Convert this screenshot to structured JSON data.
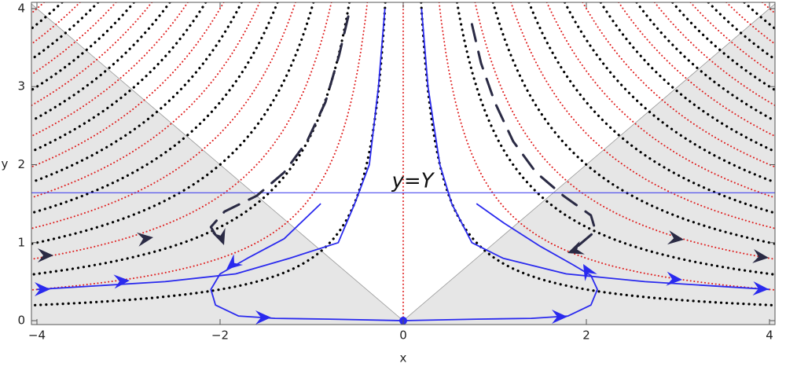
{
  "chart_data": {
    "type": "streamplot",
    "xlabel": "x",
    "ylabel": "y",
    "xlim": [
      -4.06,
      4.06
    ],
    "ylim": [
      -0.05,
      4.08
    ],
    "xticks": [
      {
        "value": -4,
        "label": "−4"
      },
      {
        "value": -2,
        "label": "−2"
      },
      0,
      2,
      4
    ],
    "yticks": [
      0,
      1,
      2,
      3,
      4
    ],
    "shading": true,
    "families": [
      {
        "color": "#000000",
        "style": "dotted",
        "levels": [
          0.8,
          2.4,
          4.0,
          5.6,
          7.2,
          8.8,
          10.4,
          12.0,
          13.6,
          15.2
        ]
      },
      {
        "color": "#e02020",
        "style": "fine-dotted",
        "levels": [
          1.6,
          3.2,
          4.8,
          6.4,
          8.0,
          9.6,
          11.2,
          12.8,
          14.4,
          16.0
        ]
      }
    ],
    "vertical_line": {
      "x": 0,
      "color": "#e02020"
    },
    "reference_line": {
      "y": 1.64,
      "label": "y=Y",
      "color": "#3333ee"
    },
    "trajectories": [
      {
        "color": "#2a2aee",
        "style": "solid",
        "x": [
          -0.2,
          -0.27,
          -0.37,
          -0.53,
          -0.71,
          -1.24,
          -1.83,
          -2.6,
          -4.0
        ],
        "y": [
          4.0,
          3.0,
          2.0,
          1.5,
          1.0,
          0.8,
          0.6,
          0.5,
          0.4
        ]
      },
      {
        "color": "#2a2aee",
        "style": "solid",
        "x": [
          0.2,
          0.27,
          0.4,
          0.53,
          0.75,
          1.09,
          1.78,
          2.64,
          4.0
        ],
        "y": [
          4.0,
          3.0,
          2.0,
          1.5,
          1.0,
          0.8,
          0.6,
          0.5,
          0.4
        ]
      },
      {
        "color": "#2a2aee",
        "style": "solid",
        "x": [
          -0.9,
          -1.3,
          -1.7,
          -2.0,
          -2.1,
          -2.05,
          -1.8,
          -1.4,
          -0.8,
          0
        ],
        "y": [
          1.5,
          1.05,
          0.8,
          0.6,
          0.4,
          0.2,
          0.06,
          0.03,
          0.02,
          0
        ]
      },
      {
        "color": "#2a2aee",
        "style": "solid",
        "x": [
          0,
          0.8,
          1.4,
          1.8,
          2.05,
          2.12,
          2.05,
          1.85,
          1.5,
          1.1,
          0.8
        ],
        "y": [
          0,
          0.02,
          0.03,
          0.06,
          0.2,
          0.4,
          0.58,
          0.72,
          0.95,
          1.25,
          1.5
        ]
      },
      {
        "color": "#2a2a44",
        "style": "dashed",
        "x": [
          -0.6,
          -0.7,
          -0.85,
          -1.05,
          -1.3,
          -1.6,
          -1.95,
          -2.1,
          -2.0
        ],
        "y": [
          3.9,
          3.4,
          2.8,
          2.3,
          1.9,
          1.6,
          1.4,
          1.2,
          1.0
        ]
      },
      {
        "color": "#2a2a44",
        "style": "dashed",
        "x": [
          0.75,
          0.85,
          1.0,
          1.2,
          1.45,
          1.75,
          2.05,
          2.1,
          1.9
        ],
        "y": [
          3.8,
          3.3,
          2.8,
          2.3,
          1.9,
          1.6,
          1.35,
          1.15,
          0.95
        ]
      }
    ],
    "points": {
      "color": "#2a2aee",
      "x": [
        0
      ],
      "y": [
        0
      ]
    }
  }
}
